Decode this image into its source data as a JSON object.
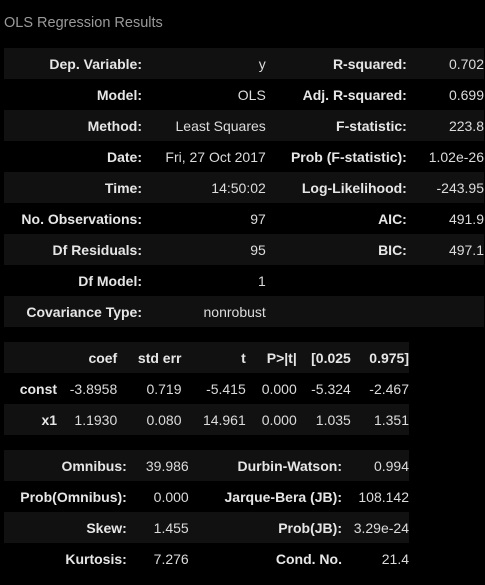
{
  "caption": "OLS Regression Results",
  "summary": {
    "rows": [
      {
        "l1": "Dep. Variable:",
        "v1": "y",
        "l2": "R-squared:",
        "v2": "0.702"
      },
      {
        "l1": "Model:",
        "v1": "OLS",
        "l2": "Adj. R-squared:",
        "v2": "0.699"
      },
      {
        "l1": "Method:",
        "v1": "Least Squares",
        "l2": "F-statistic:",
        "v2": "223.8"
      },
      {
        "l1": "Date:",
        "v1": "Fri, 27 Oct 2017",
        "l2": "Prob (F-statistic):",
        "v2": "1.02e-26"
      },
      {
        "l1": "Time:",
        "v1": "14:50:02",
        "l2": "Log-Likelihood:",
        "v2": "-243.95"
      },
      {
        "l1": "No. Observations:",
        "v1": "97",
        "l2": "AIC:",
        "v2": "491.9"
      },
      {
        "l1": "Df Residuals:",
        "v1": "95",
        "l2": "BIC:",
        "v2": "497.1"
      },
      {
        "l1": "Df Model:",
        "v1": "1",
        "l2": "",
        "v2": ""
      },
      {
        "l1": "Covariance Type:",
        "v1": "nonrobust",
        "l2": "",
        "v2": ""
      }
    ]
  },
  "coef": {
    "headers": [
      "",
      "coef",
      "std err",
      "t",
      "P>|t|",
      "[0.025",
      "0.975]"
    ],
    "rows": [
      [
        "const",
        "-3.8958",
        "0.719",
        "-5.415",
        "0.000",
        "-5.324",
        "-2.467"
      ],
      [
        "x1",
        "1.1930",
        "0.080",
        "14.961",
        "0.000",
        "1.035",
        "1.351"
      ]
    ]
  },
  "diagnostics": {
    "rows": [
      {
        "l1": "Omnibus:",
        "v1": "39.986",
        "l2": "Durbin-Watson:",
        "v2": "0.994"
      },
      {
        "l1": "Prob(Omnibus):",
        "v1": "0.000",
        "l2": "Jarque-Bera (JB):",
        "v2": "108.142"
      },
      {
        "l1": "Skew:",
        "v1": "1.455",
        "l2": "Prob(JB):",
        "v2": "3.29e-24"
      },
      {
        "l1": "Kurtosis:",
        "v1": "7.276",
        "l2": "Cond. No.",
        "v2": "21.4"
      }
    ]
  }
}
